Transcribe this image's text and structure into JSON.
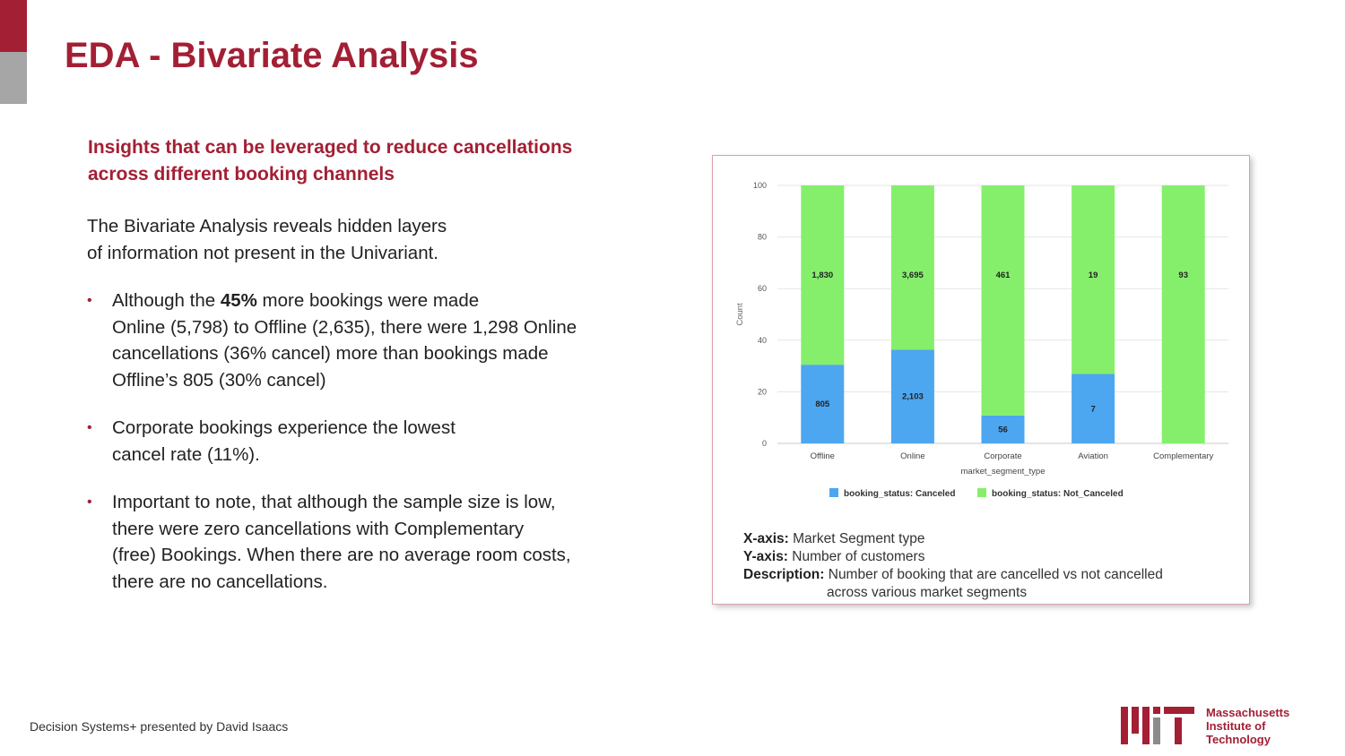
{
  "slide": {
    "title": "EDA - Bivariate Analysis",
    "subheading_line1": "Insights that can be leveraged to reduce cancellations",
    "subheading_line2": "across different booking channels",
    "intro_line1": "The Bivariate Analysis reveals hidden layers",
    "intro_line2": "of information not present in the Univariant.",
    "bullet1": {
      "pre": "Although the ",
      "bold": "45%",
      "post": " more bookings were made",
      "line2": "Online (5,798) to Offline (2,635), there were 1,298 Online",
      "line3": "cancellations (36% cancel) more than bookings made",
      "line4": "Offline’s 805 (30% cancel)"
    },
    "bullet2": {
      "line1": "Corporate bookings experience the lowest",
      "line2": "cancel rate (11%)."
    },
    "bullet3": {
      "line1": "Important to note, that although the sample size is low,",
      "line2": "there were zero cancellations with Complementary",
      "line3": "(free) Bookings. When there are no average room costs,",
      "line4": "there are no cancellations."
    },
    "bullet_marker": "•",
    "footer": "Decision Systems+ presented by David Isaacs",
    "mit_line1": "Massachusetts",
    "mit_line2": "Institute of",
    "mit_line3": "Technology",
    "colors": {
      "accent": "#a31f34",
      "gray": "#a6a6a6"
    }
  },
  "chart_desc": {
    "x_label": "X-axis:",
    "x_value": " Market Segment type",
    "y_label": "Y-axis:",
    "y_value": " Number of customers",
    "desc_label": "Description:",
    "desc_line1": " Number of booking that are cancelled vs not cancelled",
    "desc_line2": "across various market segments"
  },
  "chart_data": {
    "type": "bar",
    "stacked": true,
    "normalized_percent": true,
    "categories": [
      "Offline",
      "Online",
      "Corporate",
      "Aviation",
      "Complementary"
    ],
    "series": [
      {
        "name": "booking_status: Canceled",
        "color": "#4da6f0",
        "values": [
          30.5,
          36.3,
          10.8,
          26.9,
          0
        ],
        "labels": [
          "805",
          "2,103",
          "56",
          "7",
          ""
        ]
      },
      {
        "name": "booking_status: Not_Canceled",
        "color": "#85ef6c",
        "values": [
          69.5,
          63.7,
          89.2,
          73.1,
          100
        ],
        "labels": [
          "1,830",
          "3,695",
          "461",
          "19",
          "93"
        ]
      }
    ],
    "xlabel": "market_segment_type",
    "ylabel": "Count",
    "ylim": [
      0,
      100
    ],
    "yticks": [
      0,
      20,
      40,
      60,
      80,
      100
    ],
    "grid": true,
    "legend": "bottom"
  }
}
